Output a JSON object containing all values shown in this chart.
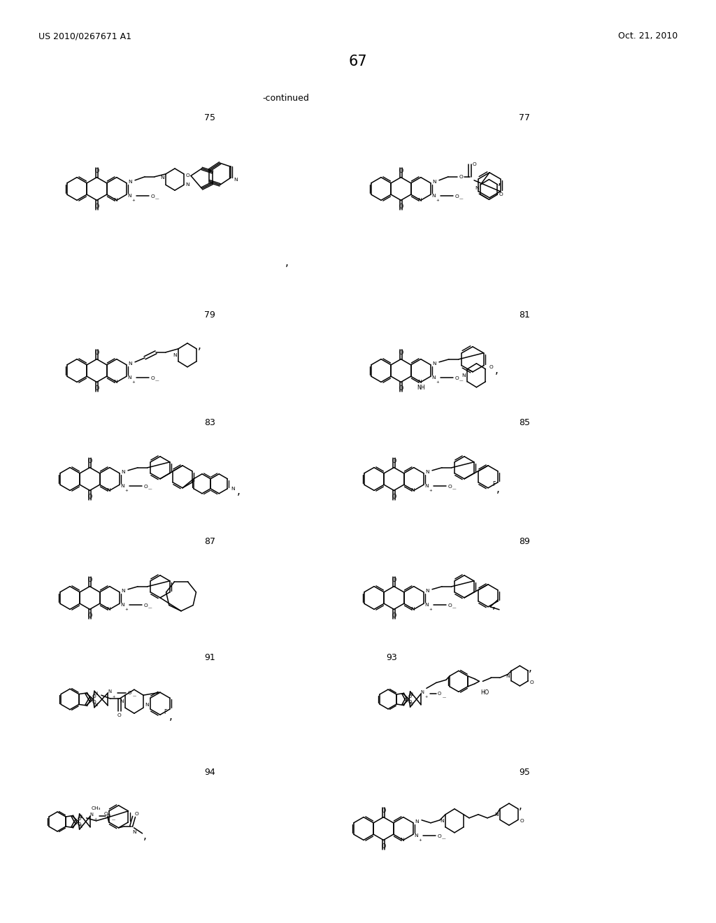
{
  "patent_number": "US 2010/0267671 A1",
  "patent_date": "Oct. 21, 2010",
  "page_number": "67",
  "continued": "-continued",
  "bg": "#ffffff",
  "compounds": [
    "75",
    "77",
    "79",
    "81",
    "83",
    "85",
    "87",
    "89",
    "91",
    "93",
    "94",
    "95"
  ]
}
